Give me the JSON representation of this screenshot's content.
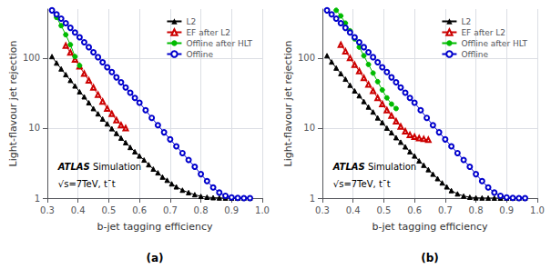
{
  "chart_data": [
    {
      "type": "line",
      "title": "(a)",
      "xlabel": "b-jet tagging efficiency",
      "ylabel": "Light-flavour jet rejection",
      "xlim": [
        0.3,
        1.0
      ],
      "ylim": [
        1.0,
        500
      ],
      "xticks": [
        0.3,
        0.4,
        0.5,
        0.6,
        0.7,
        0.8,
        0.9,
        {
          "value": 1.0,
          "label": "1.0"
        }
      ],
      "yticks": [
        1,
        10,
        100
      ],
      "log": "y",
      "grid": true,
      "legend": "upper right",
      "annotations": [
        "ATLAS",
        "Simulation",
        "√s=7TeV, t¯t"
      ],
      "series": [
        {
          "name": "L2",
          "color": "#000000",
          "marker": "triangle",
          "line_style": "solid",
          "x": [
            0.315,
            0.33,
            0.345,
            0.36,
            0.375,
            0.39,
            0.405,
            0.42,
            0.435,
            0.45,
            0.465,
            0.48,
            0.495,
            0.51,
            0.525,
            0.54,
            0.555,
            0.57,
            0.585,
            0.6,
            0.615,
            0.63,
            0.645,
            0.66,
            0.675,
            0.69,
            0.705,
            0.72,
            0.74,
            0.76,
            0.78,
            0.8,
            0.82,
            0.84,
            0.86,
            0.88,
            0.9,
            0.92,
            0.94,
            0.96
          ],
          "values": [
            105,
            85,
            70,
            58,
            48,
            40,
            33,
            28,
            23,
            19,
            16,
            13.5,
            11.5,
            9.8,
            8.4,
            7.2,
            6.2,
            5.3,
            4.6,
            4.0,
            3.5,
            3.0,
            2.6,
            2.3,
            2.0,
            1.8,
            1.6,
            1.45,
            1.3,
            1.2,
            1.12,
            1.06,
            1.03,
            1.015,
            1.006,
            1.003,
            1.001,
            1.0,
            1.0,
            1.0
          ]
        },
        {
          "name": "EF after L2",
          "color": "#cc0000",
          "marker": "open triangle",
          "line_style": "solid",
          "x": [
            0.36,
            0.375,
            0.39,
            0.405,
            0.42,
            0.435,
            0.45,
            0.465,
            0.48,
            0.495,
            0.51,
            0.525,
            0.54,
            0.555
          ],
          "values": [
            150,
            120,
            95,
            76,
            60,
            48,
            38,
            30,
            24,
            19,
            16,
            13,
            11,
            10
          ]
        },
        {
          "name": "Offline after HLT",
          "color": "#00bb00",
          "marker": "circle",
          "line_style": "solid",
          "x": [
            0.315,
            0.33,
            0.345,
            0.36,
            0.375,
            0.39,
            0.405
          ],
          "values": [
            480,
            380,
            290,
            215,
            155,
            105,
            78
          ]
        },
        {
          "name": "Offline",
          "color": "#0000cc",
          "marker": "open circle",
          "line_style": "solid",
          "x": [
            0.315,
            0.33,
            0.345,
            0.36,
            0.375,
            0.39,
            0.405,
            0.42,
            0.435,
            0.45,
            0.465,
            0.48,
            0.495,
            0.51,
            0.525,
            0.54,
            0.555,
            0.57,
            0.585,
            0.6,
            0.62,
            0.64,
            0.66,
            0.68,
            0.7,
            0.72,
            0.74,
            0.76,
            0.78,
            0.8,
            0.82,
            0.84,
            0.86,
            0.88,
            0.9,
            0.92,
            0.94,
            0.96
          ],
          "values": [
            480,
            420,
            365,
            315,
            270,
            232,
            198,
            168,
            143,
            121,
            103,
            87,
            74,
            63,
            53,
            45,
            38,
            32,
            27,
            23,
            18,
            14,
            11,
            8.7,
            6.9,
            5.5,
            4.4,
            3.5,
            2.8,
            2.2,
            1.75,
            1.42,
            1.2,
            1.08,
            1.025,
            1.008,
            1.002,
            1.0
          ]
        }
      ]
    },
    {
      "type": "line",
      "title": "(b)",
      "xlabel": "b-jet tagging efficiency",
      "ylabel": "Light-flavour jet rejection",
      "xlim": [
        0.3,
        1.0
      ],
      "ylim": [
        1.0,
        500
      ],
      "xticks": [
        0.3,
        0.4,
        0.5,
        0.6,
        0.7,
        0.8,
        0.9,
        {
          "value": 1.0,
          "label": "1.0"
        }
      ],
      "yticks": [
        1,
        10,
        100
      ],
      "log": "y",
      "grid": true,
      "legend": "upper right",
      "annotations": [
        "ATLAS",
        "Simulation",
        "√s=7TeV, t¯t"
      ],
      "series": [
        {
          "name": "L2",
          "color": "#000000",
          "marker": "triangle",
          "line_style": "solid",
          "x": [
            0.315,
            0.33,
            0.345,
            0.36,
            0.375,
            0.39,
            0.405,
            0.42,
            0.435,
            0.45,
            0.465,
            0.48,
            0.495,
            0.51,
            0.525,
            0.54,
            0.555,
            0.57,
            0.585,
            0.6,
            0.615,
            0.63,
            0.645,
            0.66,
            0.675,
            0.69,
            0.705,
            0.72,
            0.74,
            0.76,
            0.78,
            0.8,
            0.82,
            0.84,
            0.86,
            0.88,
            0.9,
            0.92,
            0.94,
            0.96
          ],
          "values": [
            108,
            88,
            72,
            60,
            50,
            41,
            34,
            29,
            24,
            20,
            17,
            14,
            12,
            10,
            8.6,
            7.3,
            6.3,
            5.4,
            4.6,
            4.0,
            3.4,
            2.95,
            2.55,
            2.2,
            1.9,
            1.65,
            1.45,
            1.28,
            1.15,
            1.07,
            1.03,
            1.01,
            1.005,
            1.002,
            1.001,
            1.0,
            1.0,
            1.0,
            1.0,
            1.0
          ]
        },
        {
          "name": "EF after L2",
          "color": "#cc0000",
          "marker": "open triangle",
          "line_style": "solid",
          "x": [
            0.36,
            0.375,
            0.39,
            0.405,
            0.42,
            0.435,
            0.45,
            0.465,
            0.48,
            0.495,
            0.51,
            0.525,
            0.54,
            0.555,
            0.57,
            0.585,
            0.6,
            0.615,
            0.63,
            0.645
          ],
          "values": [
            155,
            125,
            100,
            80,
            65,
            52,
            42,
            34,
            27,
            22,
            18,
            15,
            12.5,
            10.5,
            9.0,
            8.0,
            7.5,
            7.2,
            7.0,
            6.8
          ]
        },
        {
          "name": "Offline after HLT",
          "color": "#00bb00",
          "marker": "circle",
          "line_style": "solid",
          "x": [
            0.345,
            0.36,
            0.375,
            0.39,
            0.405,
            0.42,
            0.435,
            0.45,
            0.465,
            0.48,
            0.495,
            0.51,
            0.525,
            0.54
          ],
          "values": [
            480,
            400,
            315,
            245,
            188,
            143,
            108,
            81,
            61,
            46,
            35,
            27,
            22,
            19
          ]
        },
        {
          "name": "Offline",
          "color": "#0000cc",
          "marker": "open circle",
          "line_style": "solid",
          "x": [
            0.315,
            0.33,
            0.345,
            0.36,
            0.375,
            0.39,
            0.405,
            0.42,
            0.435,
            0.45,
            0.465,
            0.48,
            0.495,
            0.51,
            0.525,
            0.54,
            0.555,
            0.57,
            0.585,
            0.6,
            0.62,
            0.64,
            0.66,
            0.68,
            0.7,
            0.72,
            0.74,
            0.76,
            0.78,
            0.8,
            0.82,
            0.84,
            0.86,
            0.88,
            0.9,
            0.92,
            0.94,
            0.96
          ],
          "values": [
            480,
            420,
            365,
            315,
            270,
            232,
            198,
            168,
            143,
            121,
            103,
            87,
            74,
            63,
            53,
            45,
            38,
            32,
            27,
            23,
            18,
            14,
            11,
            8.7,
            6.9,
            5.5,
            4.4,
            3.5,
            2.8,
            2.2,
            1.75,
            1.42,
            1.2,
            1.08,
            1.025,
            1.008,
            1.002,
            1.0
          ]
        }
      ]
    }
  ]
}
